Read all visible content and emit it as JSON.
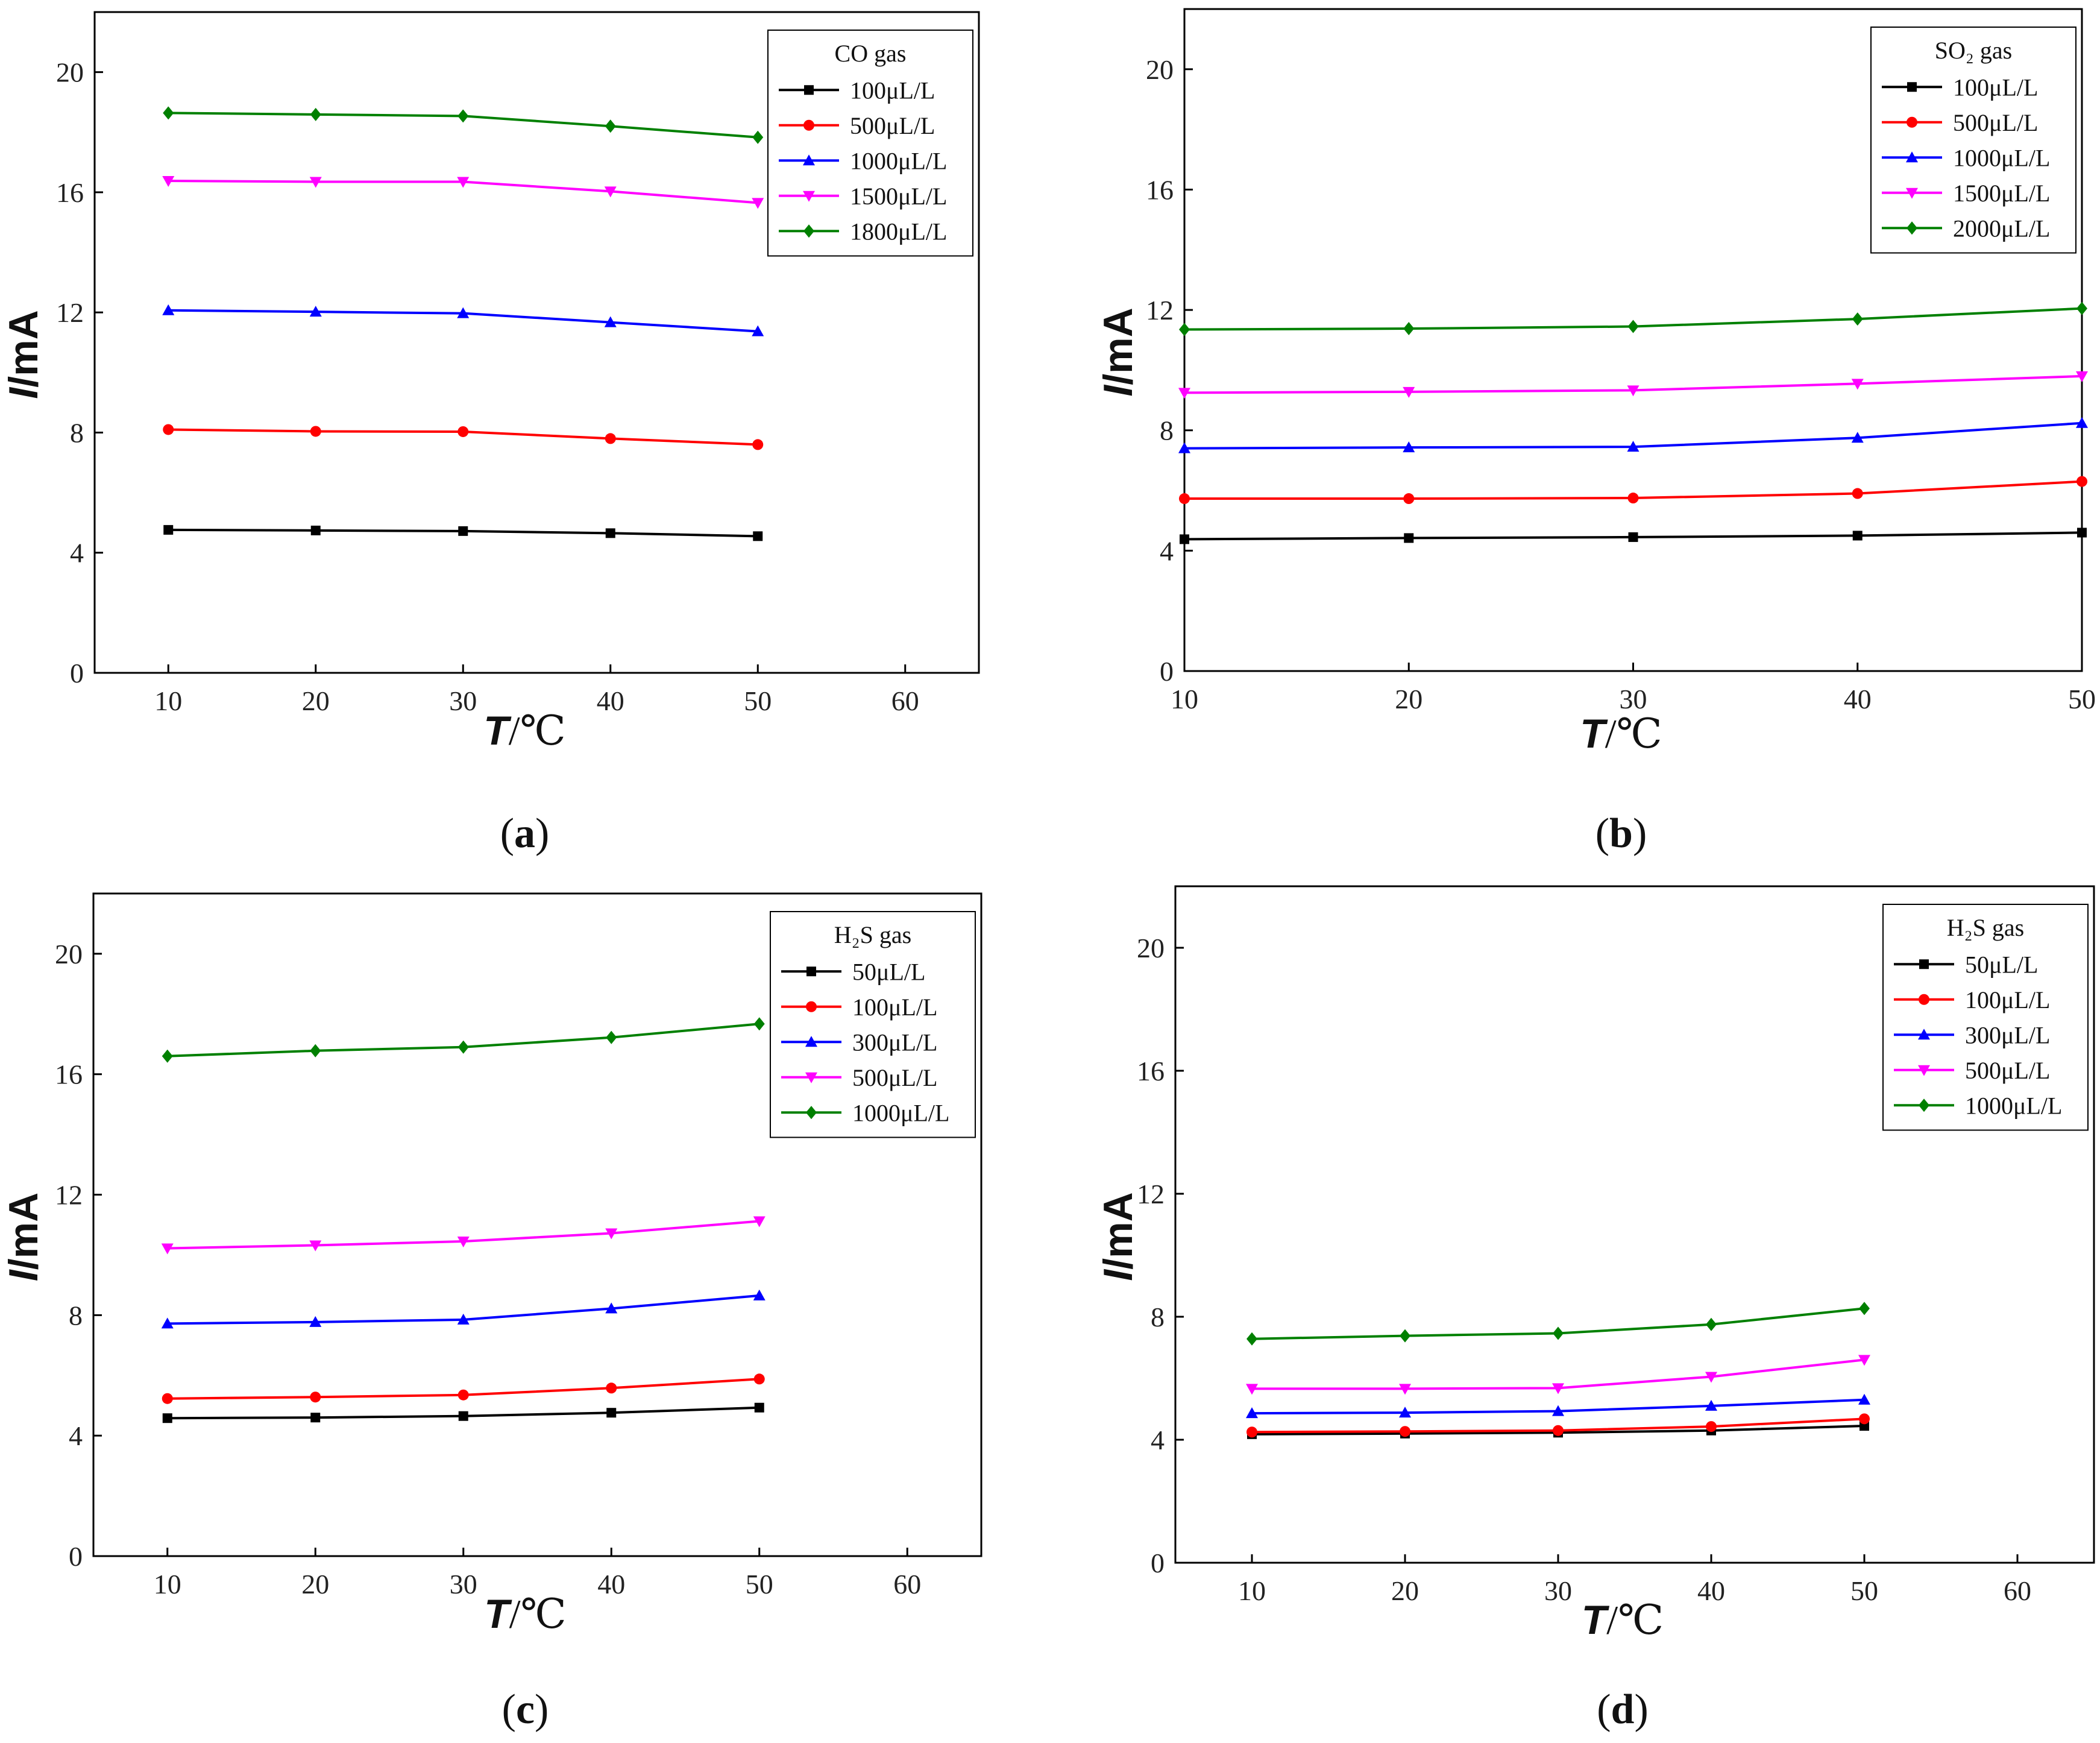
{
  "colors": {
    "black": "#000000",
    "red": "#ff0000",
    "blue": "#0000ff",
    "magenta": "#ff00ff",
    "green": "#008000"
  },
  "chart_data": [
    {
      "type": "line",
      "panel_label": "a",
      "title": "CO gas",
      "xlabel_var": "T",
      "xlabel_unit": "/℃",
      "ylabel_var": "I",
      "ylabel_unit": "/mA",
      "xlim": [
        5,
        65
      ],
      "ylim": [
        0,
        22
      ],
      "xticks": [
        10,
        20,
        30,
        40,
        50,
        60
      ],
      "yticks": [
        0,
        4,
        8,
        12,
        16,
        20
      ],
      "grid": false,
      "legend_position": "top-right",
      "x": [
        10,
        20,
        30,
        40,
        50
      ],
      "series": [
        {
          "name": "100μL/L",
          "color": "black",
          "marker": "square",
          "values": [
            4.76,
            4.74,
            4.72,
            4.65,
            4.55
          ]
        },
        {
          "name": "500μL/L",
          "color": "red",
          "marker": "circle",
          "values": [
            8.1,
            8.04,
            8.03,
            7.8,
            7.6
          ]
        },
        {
          "name": "1000μL/L",
          "color": "blue",
          "marker": "triangle-up",
          "values": [
            12.07,
            12.02,
            11.97,
            11.67,
            11.37
          ]
        },
        {
          "name": "1500μL/L",
          "color": "magenta",
          "marker": "triangle-down",
          "values": [
            16.38,
            16.35,
            16.35,
            16.03,
            15.65
          ]
        },
        {
          "name": "1800μL/L",
          "color": "green",
          "marker": "diamond",
          "values": [
            18.64,
            18.59,
            18.54,
            18.2,
            17.83
          ]
        }
      ]
    },
    {
      "type": "line",
      "panel_label": "b",
      "title": "SO₂ gas",
      "xlabel_var": "T",
      "xlabel_unit": "/℃",
      "ylabel_var": "I",
      "ylabel_unit": "/mA",
      "xlim": [
        10,
        50
      ],
      "ylim": [
        0,
        22
      ],
      "xticks": [
        10,
        20,
        30,
        40,
        50
      ],
      "yticks": [
        0,
        4,
        8,
        12,
        16,
        20
      ],
      "grid": false,
      "legend_position": "top-right",
      "x": [
        10,
        20,
        30,
        40,
        50
      ],
      "series": [
        {
          "name": "100μL/L",
          "color": "black",
          "marker": "square",
          "values": [
            4.38,
            4.42,
            4.45,
            4.5,
            4.6
          ]
        },
        {
          "name": "500μL/L",
          "color": "red",
          "marker": "circle",
          "values": [
            5.73,
            5.73,
            5.75,
            5.9,
            6.3
          ]
        },
        {
          "name": "1000μL/L",
          "color": "blue",
          "marker": "triangle-up",
          "values": [
            7.4,
            7.43,
            7.45,
            7.75,
            8.24
          ]
        },
        {
          "name": "1500μL/L",
          "color": "magenta",
          "marker": "triangle-down",
          "values": [
            9.25,
            9.28,
            9.33,
            9.55,
            9.8
          ]
        },
        {
          "name": "2000μL/L",
          "color": "green",
          "marker": "diamond",
          "values": [
            11.35,
            11.38,
            11.45,
            11.7,
            12.05
          ]
        }
      ]
    },
    {
      "type": "line",
      "panel_label": "c",
      "title": "H₂S gas",
      "xlabel_var": "T",
      "xlabel_unit": "/℃",
      "ylabel_var": "I",
      "ylabel_unit": "/mA",
      "xlim": [
        5,
        65
      ],
      "ylim": [
        0,
        22
      ],
      "xticks": [
        10,
        20,
        30,
        40,
        50,
        60
      ],
      "yticks": [
        0,
        4,
        8,
        12,
        16,
        20
      ],
      "grid": false,
      "legend_position": "top-right",
      "x": [
        10,
        20,
        30,
        40,
        50
      ],
      "series": [
        {
          "name": "50μL/L",
          "color": "black",
          "marker": "square",
          "values": [
            4.58,
            4.6,
            4.65,
            4.76,
            4.93
          ]
        },
        {
          "name": "100μL/L",
          "color": "red",
          "marker": "circle",
          "values": [
            5.23,
            5.28,
            5.35,
            5.58,
            5.88
          ]
        },
        {
          "name": "300μL/L",
          "color": "blue",
          "marker": "triangle-up",
          "values": [
            7.72,
            7.77,
            7.85,
            8.22,
            8.65
          ]
        },
        {
          "name": "500μL/L",
          "color": "magenta",
          "marker": "triangle-down",
          "values": [
            10.22,
            10.32,
            10.45,
            10.72,
            11.12
          ]
        },
        {
          "name": "1000μL/L",
          "color": "green",
          "marker": "diamond",
          "values": [
            16.6,
            16.78,
            16.9,
            17.22,
            17.67
          ]
        }
      ]
    },
    {
      "type": "line",
      "panel_label": "d",
      "title": "H₂S gas",
      "xlabel_var": "T",
      "xlabel_unit": "/℃",
      "ylabel_var": "I",
      "ylabel_unit": "/mA",
      "xlim": [
        5,
        65
      ],
      "ylim": [
        0,
        22
      ],
      "xticks": [
        10,
        20,
        30,
        40,
        50,
        60
      ],
      "yticks": [
        0,
        4,
        8,
        12,
        16,
        20
      ],
      "grid": false,
      "legend_position": "top-right",
      "x": [
        10,
        20,
        30,
        40,
        50
      ],
      "series": [
        {
          "name": "50μL/L",
          "color": "black",
          "marker": "square",
          "values": [
            4.18,
            4.2,
            4.23,
            4.3,
            4.45
          ]
        },
        {
          "name": "100μL/L",
          "color": "red",
          "marker": "circle",
          "values": [
            4.25,
            4.27,
            4.3,
            4.43,
            4.68
          ]
        },
        {
          "name": "300μL/L",
          "color": "blue",
          "marker": "triangle-up",
          "values": [
            4.86,
            4.88,
            4.93,
            5.1,
            5.3
          ]
        },
        {
          "name": "500μL/L",
          "color": "magenta",
          "marker": "triangle-down",
          "values": [
            5.66,
            5.66,
            5.68,
            6.05,
            6.6
          ]
        },
        {
          "name": "1000μL/L",
          "color": "green",
          "marker": "diamond",
          "values": [
            7.28,
            7.38,
            7.46,
            7.75,
            8.27
          ]
        }
      ]
    }
  ]
}
